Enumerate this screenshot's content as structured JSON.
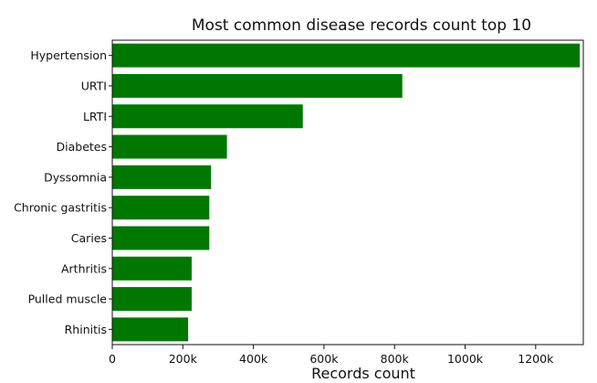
{
  "chart_data": {
    "type": "bar",
    "orientation": "horizontal",
    "title": "Most common disease records count top 10",
    "xlabel": "Records count",
    "ylabel": "",
    "categories": [
      "Hypertension",
      "URTI",
      "LRTI",
      "Diabetes",
      "Dyssomnia",
      "Chronic gastritis",
      "Caries",
      "Arthritis",
      "Pulled muscle",
      "Rhinitis"
    ],
    "values": [
      1325000,
      822000,
      540000,
      325000,
      280000,
      275000,
      275000,
      225000,
      225000,
      215000
    ],
    "xlim": [
      0,
      1335000
    ],
    "xticks": [
      0,
      200000,
      400000,
      600000,
      800000,
      1000000,
      1200000
    ],
    "xtick_labels": [
      "0",
      "200k",
      "400k",
      "600k",
      "800k",
      "1000k",
      "1200k"
    ],
    "bar_color": "#007700",
    "grid": false,
    "legend": "none"
  }
}
